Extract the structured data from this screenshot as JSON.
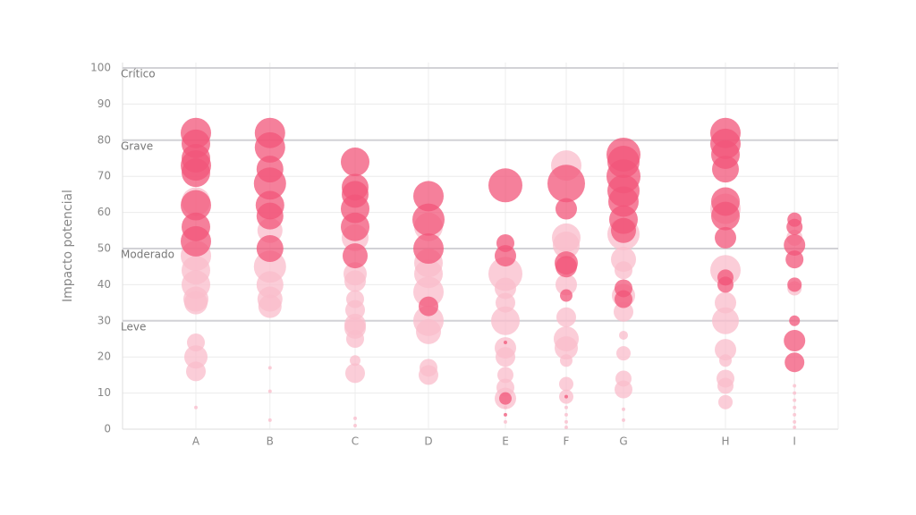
{
  "chart_data": {
    "type": "bubble",
    "ylabel": "Impacto potencial",
    "ylim": [
      0,
      100
    ],
    "yticks": [
      0,
      10,
      20,
      30,
      40,
      50,
      60,
      70,
      80,
      90,
      100
    ],
    "xlim": [
      0,
      100
    ],
    "xticks": [
      {
        "value": 10.25,
        "label": "A"
      },
      {
        "value": 20.6,
        "label": "B"
      },
      {
        "value": 32.5,
        "label": "C"
      },
      {
        "value": 42.75,
        "label": "D"
      },
      {
        "value": 53.5,
        "label": "E"
      },
      {
        "value": 62,
        "label": "F"
      },
      {
        "value": 70,
        "label": "G"
      },
      {
        "value": 84.25,
        "label": "H"
      },
      {
        "value": 93.9,
        "label": "I"
      }
    ],
    "grid": true,
    "bands": [
      {
        "value": 30,
        "label": "Leve"
      },
      {
        "value": 50,
        "label": "Moderado"
      },
      {
        "value": 80,
        "label": "Grave"
      },
      {
        "value": 100,
        "label": "Crítico"
      }
    ],
    "series": [
      {
        "color": "#f9bccb",
        "x": 10.25,
        "values": [
          63,
          48,
          44,
          40,
          36,
          35,
          24,
          20,
          16,
          6
        ],
        "sizes": [
          16,
          17,
          16,
          16,
          14,
          13,
          10,
          13,
          11,
          2
        ]
      },
      {
        "color": "#f2567a",
        "x": 10.25,
        "values": [
          82,
          79,
          75,
          73,
          71,
          62,
          56,
          52
        ],
        "sizes": [
          17,
          16,
          16,
          17,
          16,
          17,
          16,
          17
        ]
      },
      {
        "color": "#f9bccb",
        "x": 20.6,
        "values": [
          55,
          45,
          40,
          36,
          34,
          17,
          10.5,
          2.5
        ],
        "sizes": [
          14,
          18,
          15,
          14,
          13,
          2,
          2,
          2
        ]
      },
      {
        "color": "#f2567a",
        "x": 20.6,
        "values": [
          82,
          78,
          72,
          68,
          62,
          59,
          50
        ],
        "sizes": [
          17,
          17,
          15,
          18,
          16,
          15,
          15
        ]
      },
      {
        "color": "#f9bccb",
        "x": 32.5,
        "values": [
          53,
          43,
          41,
          36,
          33,
          29,
          28,
          25,
          19,
          15.5,
          3,
          1
        ],
        "sizes": [
          15,
          13,
          12,
          10,
          11,
          12,
          12,
          10,
          6,
          11,
          2,
          2
        ]
      },
      {
        "color": "#f2567a",
        "x": 32.5,
        "values": [
          74,
          67,
          65,
          61,
          56,
          48
        ],
        "sizes": [
          16,
          15,
          15,
          16,
          16,
          14
        ]
      },
      {
        "color": "#f9bccb",
        "x": 42.75,
        "values": [
          56,
          46,
          43,
          38,
          30,
          27,
          17,
          15
        ],
        "sizes": [
          16,
          16,
          16,
          17,
          17,
          14,
          10,
          11
        ]
      },
      {
        "color": "#f2567a",
        "x": 42.75,
        "values": [
          64.5,
          58,
          50,
          34
        ],
        "sizes": [
          17,
          18,
          17,
          11
        ]
      },
      {
        "color": "#f9bccb",
        "x": 53.5,
        "values": [
          43,
          39,
          35,
          30,
          22.5,
          20,
          15,
          11.5,
          8.5,
          6,
          2
        ],
        "sizes": [
          19,
          12,
          11,
          16,
          12,
          11,
          9,
          10,
          12,
          2,
          2
        ]
      },
      {
        "color": "#f2567a",
        "x": 53.5,
        "values": [
          67.5,
          51.5,
          48,
          24,
          8.5,
          4
        ],
        "sizes": [
          19,
          10,
          12,
          2,
          7,
          2
        ]
      },
      {
        "color": "#f9bccb",
        "x": 62,
        "values": [
          73,
          53,
          51,
          40,
          31,
          25,
          22.5,
          19,
          12.5,
          9,
          6,
          4,
          2,
          0.5
        ],
        "sizes": [
          17,
          16,
          15,
          12,
          11,
          14,
          13,
          7,
          8,
          8,
          2,
          2,
          2,
          2
        ]
      },
      {
        "color": "#f2567a",
        "x": 62,
        "values": [
          68,
          61,
          46,
          45,
          37,
          9
        ],
        "sizes": [
          21,
          12,
          13,
          12,
          7,
          2
        ]
      },
      {
        "color": "#f9bccb",
        "x": 70,
        "values": [
          54,
          47,
          44,
          37,
          32.5,
          26,
          21,
          14,
          11,
          5.5,
          2.5
        ],
        "sizes": [
          18,
          14,
          10,
          13,
          11,
          5,
          8,
          9,
          10,
          2,
          2
        ]
      },
      {
        "color": "#f2567a",
        "x": 70,
        "values": [
          76,
          74,
          70,
          66,
          63,
          58,
          55,
          39,
          36
        ],
        "sizes": [
          19,
          18,
          19,
          18,
          17,
          16,
          14,
          10,
          10
        ]
      },
      {
        "color": "#f9bccb",
        "x": 84.25,
        "values": [
          61,
          44,
          35,
          30,
          22,
          19,
          14,
          12,
          7.5
        ],
        "sizes": [
          17,
          17,
          12,
          15,
          12,
          7,
          10,
          9,
          8
        ]
      },
      {
        "color": "#f2567a",
        "x": 84.25,
        "values": [
          82,
          79,
          76,
          72,
          63,
          59,
          53,
          42,
          40
        ],
        "sizes": [
          17,
          17,
          16,
          15,
          16,
          16,
          12,
          9,
          9
        ]
      },
      {
        "color": "#f9bccb",
        "x": 93.9,
        "values": [
          53,
          39,
          12,
          10,
          8,
          6,
          4,
          2,
          0.5
        ],
        "sizes": [
          9,
          8,
          2,
          2,
          2,
          2,
          2,
          2,
          2
        ]
      },
      {
        "color": "#f2567a",
        "x": 93.9,
        "values": [
          58,
          56,
          51,
          47,
          40,
          30,
          24.5,
          18.5
        ],
        "sizes": [
          8,
          9,
          12,
          10,
          8,
          6,
          12,
          11
        ]
      }
    ]
  }
}
